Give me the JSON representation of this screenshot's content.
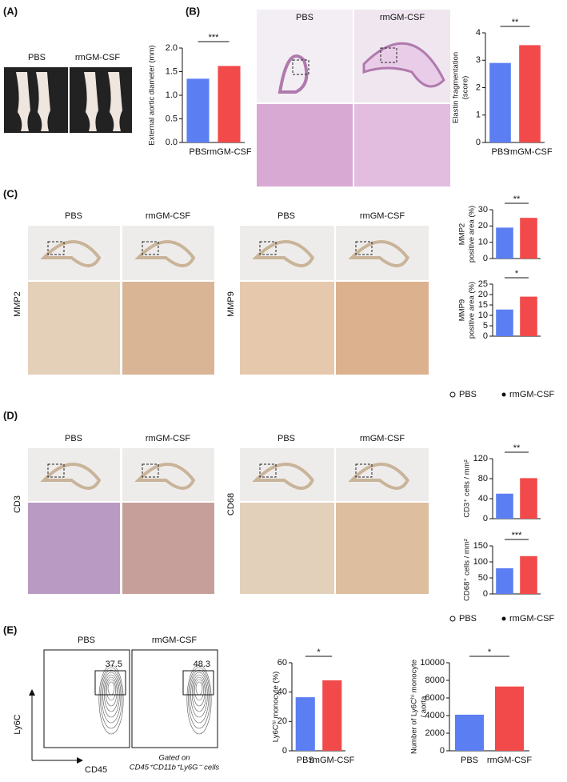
{
  "panel_labels": [
    "(A)",
    "(B)",
    "(C)",
    "(D)",
    "(E)"
  ],
  "images": {
    "A": [
      "PBS",
      "rmGM-CSF"
    ],
    "B": [
      "PBS",
      "rmGM-CSF"
    ],
    "C": {
      "left": [
        "PBS",
        "rmGM-CSF"
      ],
      "left_stain": "MMP2",
      "right": [
        "PBS",
        "rmGM-CSF"
      ],
      "right_stain": "MMP9"
    },
    "D": {
      "left": [
        "PBS",
        "rmGM-CSF"
      ],
      "left_stain": "CD3",
      "right": [
        "PBS",
        "rmGM-CSF"
      ],
      "right_stain": "CD68"
    }
  },
  "legend_c": [
    "PBS",
    "rmGM-CSF"
  ],
  "legend_d": [
    "PBS",
    "rmGM-CSF"
  ],
  "flow": {
    "headers": [
      "PBS",
      "rmGM-CSF"
    ],
    "gates": [
      37.5,
      48.3
    ],
    "y_axis": "Ly6C",
    "x_axis": "CD45",
    "note": [
      "Gated on",
      "CD45⁺CD11b⁺Ly6G⁻ cells"
    ]
  },
  "chart_data": [
    {
      "type": "bar",
      "ylabel": [
        "External aortic diameter (mm)"
      ],
      "categories": [
        "PBS",
        "rmGM-CSF"
      ],
      "values": [
        1.35,
        1.62
      ],
      "colors": [
        "#5b7ff3",
        "#f24a4a"
      ],
      "ylim": [
        0,
        2
      ],
      "yticks": [
        {
          "value": 0,
          "label": "0.0"
        },
        0.5,
        {
          "value": 1,
          "label": "1.0"
        },
        1.5,
        {
          "value": 2,
          "label": "2.0"
        }
      ],
      "significance": "***"
    },
    {
      "type": "bar",
      "ylabel": [
        "Elastin fragmentation",
        "(score)"
      ],
      "categories": [
        "PBS",
        "rmGM-CSF"
      ],
      "values": [
        2.9,
        3.55
      ],
      "colors": [
        "#5b7ff3",
        "#f24a4a"
      ],
      "ylim": [
        0,
        4
      ],
      "yticks": [
        0,
        1,
        2,
        3,
        4
      ],
      "significance": "**"
    },
    {
      "type": "bar",
      "ylabel": [
        "MMP2",
        "positive area (%)"
      ],
      "categories": [
        null,
        null
      ],
      "values": [
        19,
        25
      ],
      "colors": [
        "#5b7ff3",
        "#f24a4a"
      ],
      "ylim": [
        0,
        30
      ],
      "yticks": [
        0,
        10,
        20,
        30
      ],
      "significance": "**"
    },
    {
      "type": "bar",
      "ylabel": [
        "MMP9",
        "positive area (%)"
      ],
      "categories": [
        null,
        null
      ],
      "values": [
        12.8,
        19
      ],
      "colors": [
        "#5b7ff3",
        "#f24a4a"
      ],
      "ylim": [
        0,
        25
      ],
      "yticks": [
        0,
        5,
        10,
        15,
        20,
        25
      ],
      "significance": "*"
    },
    {
      "type": "bar",
      "ylabel": [
        "CD3⁺ cells / mm²"
      ],
      "categories": [
        null,
        null
      ],
      "values": [
        50,
        81
      ],
      "colors": [
        "#5b7ff3",
        "#f24a4a"
      ],
      "ylim": [
        0,
        120
      ],
      "yticks": [
        0,
        40,
        80,
        120
      ],
      "significance": "**"
    },
    {
      "type": "bar",
      "ylabel": [
        "CD68⁺ cells / mm²"
      ],
      "categories": [
        null,
        null
      ],
      "values": [
        80,
        118
      ],
      "colors": [
        "#5b7ff3",
        "#f24a4a"
      ],
      "ylim": [
        0,
        150
      ],
      "yticks": [
        0,
        50,
        100,
        150
      ],
      "significance": "***"
    },
    {
      "type": "bar",
      "ylabel": [
        "Ly6Cʰⁱ monocyte (%)"
      ],
      "categories": [
        "PBS",
        "rmGM-CSF"
      ],
      "values": [
        36.5,
        48
      ],
      "colors": [
        "#5b7ff3",
        "#f24a4a"
      ],
      "ylim": [
        0,
        60
      ],
      "yticks": [
        0,
        20,
        40,
        60
      ],
      "significance": "*"
    },
    {
      "type": "bar",
      "ylabel": [
        "Number of Ly6Cʰⁱ monocyte",
        "/ aorta"
      ],
      "categories": [
        "PBS",
        "rmGM-CSF"
      ],
      "values": [
        4100,
        7300
      ],
      "colors": [
        "#5b7ff3",
        "#f24a4a"
      ],
      "ylim": [
        0,
        10000
      ],
      "yticks": [
        0,
        2000,
        4000,
        6000,
        8000,
        10000
      ],
      "significance": "*"
    }
  ]
}
